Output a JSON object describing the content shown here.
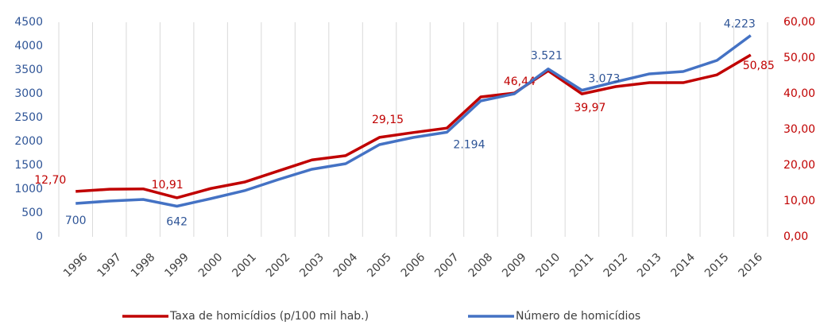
{
  "chart_data": {
    "type": "line",
    "categories": [
      "1996",
      "1997",
      "1998",
      "1999",
      "2000",
      "2001",
      "2002",
      "2003",
      "2004",
      "2005",
      "2006",
      "2007",
      "2008",
      "2009",
      "2010",
      "2011",
      "2012",
      "2013",
      "2014",
      "2015",
      "2016"
    ],
    "series": [
      {
        "name": "Taxa de homicídios (p/100 mil hab.)",
        "color": "#c00000",
        "axis": "y2",
        "values": [
          12.7,
          13.3,
          13.4,
          10.91,
          13.5,
          15.3,
          18.4,
          21.5,
          22.7,
          27.8,
          29.15,
          30.4,
          39.1,
          40.2,
          46.44,
          39.97,
          42.0,
          43.1,
          43.1,
          45.3,
          50.85
        ],
        "value_labels": [
          "12,70",
          null,
          null,
          "10,91",
          null,
          null,
          null,
          null,
          null,
          null,
          "29,15",
          null,
          null,
          null,
          "46,44",
          "39,97",
          null,
          null,
          null,
          null,
          "50,85"
        ]
      },
      {
        "name": "Número de homicídios",
        "color": "#4472c4",
        "values": [
          700,
          750,
          783,
          642,
          800,
          967,
          1200,
          1417,
          1533,
          1933,
          2083,
          2194,
          2850,
          3000,
          3521,
          3073,
          3250,
          3417,
          3467,
          3700,
          4223
        ],
        "value_labels": [
          "700",
          null,
          null,
          "642",
          null,
          null,
          null,
          null,
          null,
          null,
          null,
          "2.194",
          null,
          null,
          "3.521",
          "3.073",
          null,
          null,
          null,
          null,
          "4.223"
        ]
      }
    ],
    "ylim": [
      0,
      4500
    ],
    "yticks": [
      0,
      500,
      1000,
      1500,
      2000,
      2500,
      3000,
      3500,
      4000,
      4500
    ],
    "y2lim": [
      0,
      60
    ],
    "y2ticks": [
      {
        "value": 0,
        "label": "0,00"
      },
      {
        "value": 10,
        "label": "10,00"
      },
      {
        "value": 20,
        "label": "20,00"
      },
      {
        "value": 30,
        "label": "30,00"
      },
      {
        "value": 40,
        "label": "40,00"
      },
      {
        "value": 50,
        "label": "50,00"
      },
      {
        "value": 60,
        "label": "60,00"
      }
    ],
    "grid": "x",
    "legend": "bottom"
  }
}
